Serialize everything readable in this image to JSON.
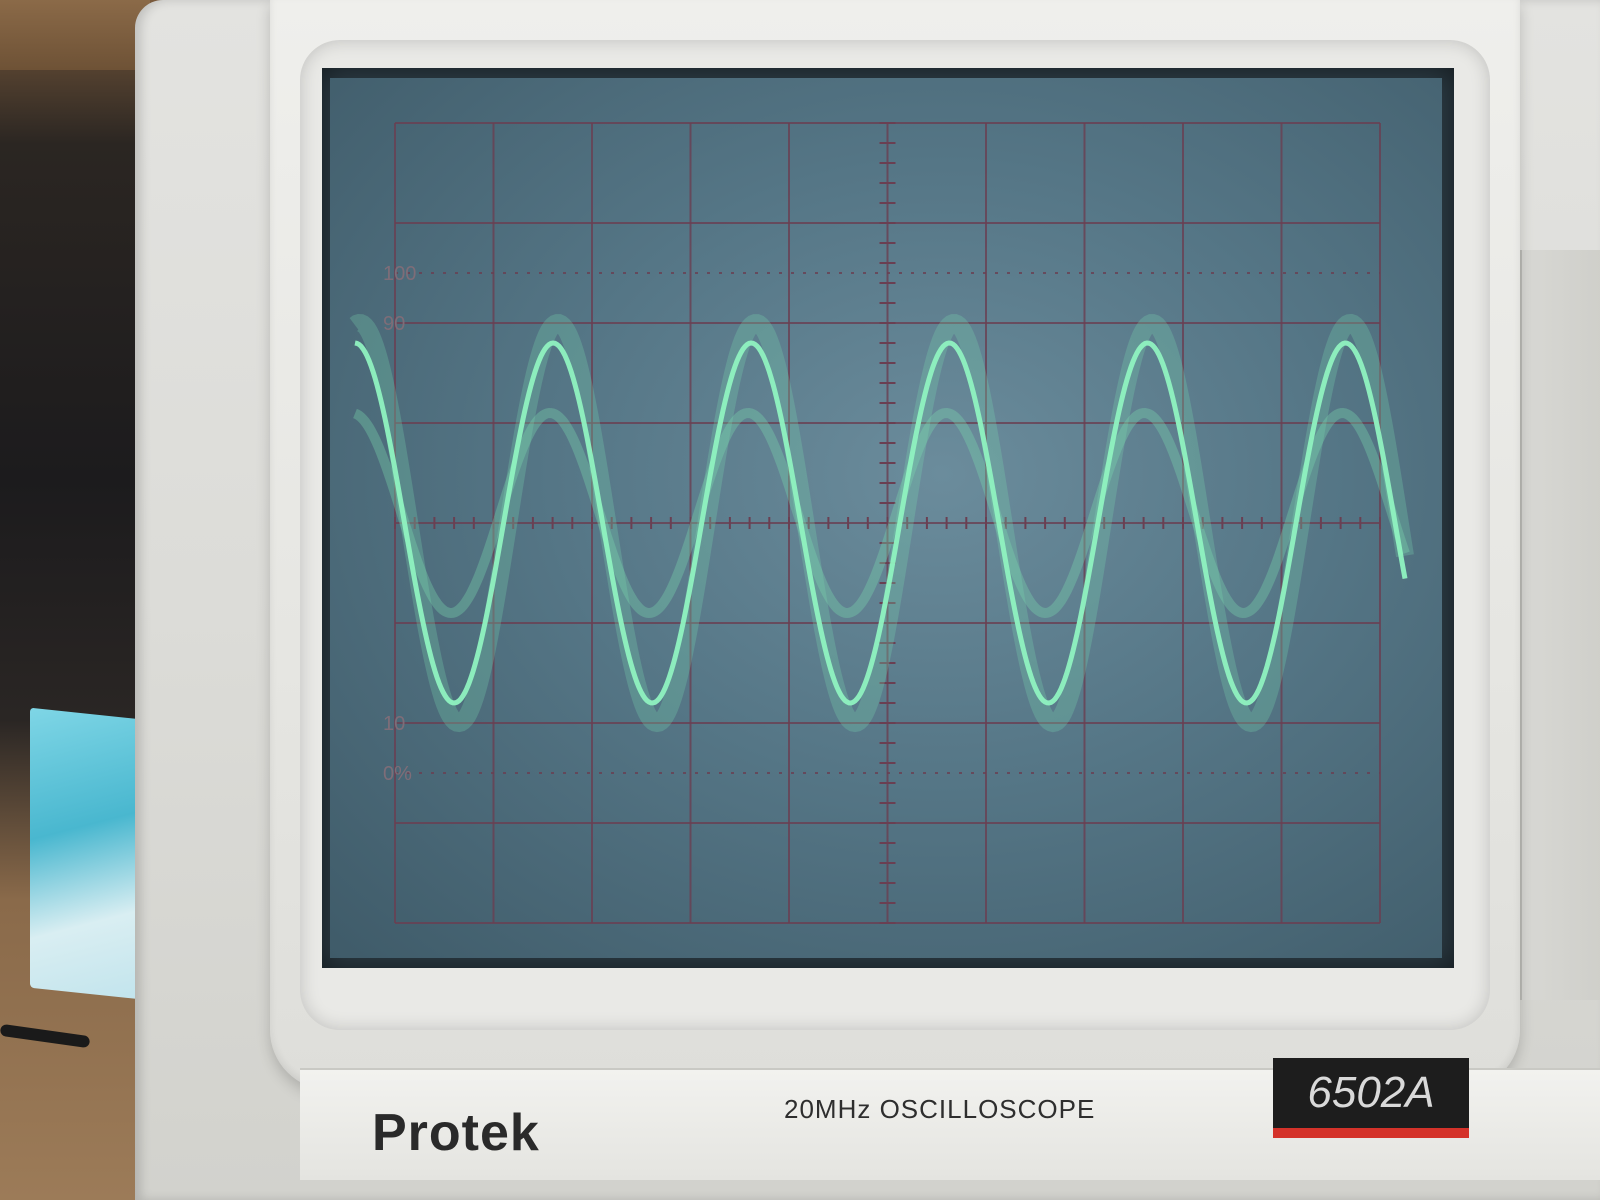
{
  "device": {
    "brand": "Protek",
    "description": "20MHz OSCILLOSCOPE",
    "model": "6502A"
  },
  "graticule": {
    "labels": [
      "100",
      "90",
      "10",
      "0%"
    ],
    "divisions_x": 10,
    "divisions_y": 8
  },
  "trace": {
    "waveform": "sine",
    "cycles_visible": 5.3,
    "amplitude_divisions": 1.8,
    "color": "#8ff2c0",
    "ghost_color": "#7ad9b0"
  },
  "colors": {
    "screen": "#557686",
    "grid": "#6a3f52",
    "case": "#e3e3e0",
    "badge_stripe": "#d4322a"
  }
}
